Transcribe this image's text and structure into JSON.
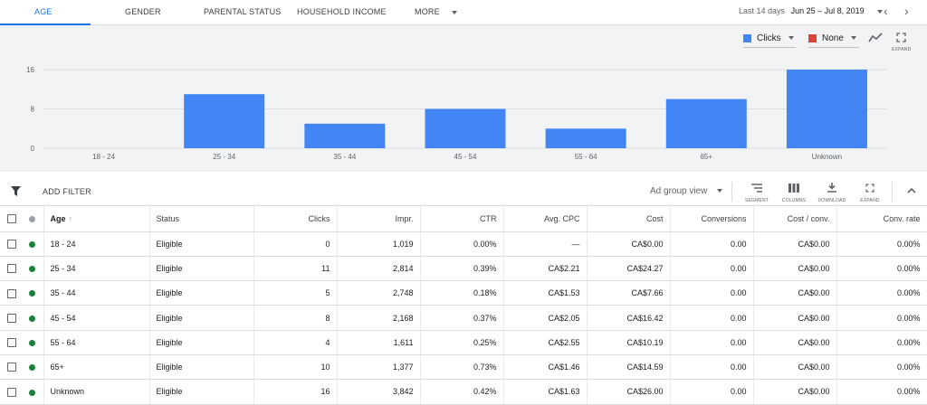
{
  "tabs": [
    {
      "label": "AGE",
      "active": true
    },
    {
      "label": "GENDER"
    },
    {
      "label": "PARENTAL STATUS"
    },
    {
      "label": "HOUSEHOLD INCOME"
    },
    {
      "label": "MORE"
    }
  ],
  "date_range": {
    "preset": "Last 14 days",
    "dates": "Jun 25 – Jul 8, 2019"
  },
  "chart_controls": {
    "metric1": {
      "label": "Clicks",
      "color": "#4285f4"
    },
    "metric2": {
      "label": "None",
      "color": "#db4437"
    },
    "expand_label": "EXPAND",
    "trend_icon": "trend-line-icon",
    "expand_icon": "fullscreen-icon"
  },
  "chart_data": {
    "type": "bar",
    "categories": [
      "18 - 24",
      "25 - 34",
      "35 - 44",
      "45 - 54",
      "55 - 64",
      "65+",
      "Unknown"
    ],
    "series": [
      {
        "name": "Clicks",
        "values": [
          0,
          11,
          5,
          8,
          4,
          10,
          16
        ],
        "color": "#4285f4"
      }
    ],
    "yticks": [
      "16",
      "8",
      "0"
    ],
    "ylim": [
      0,
      16
    ],
    "grid": true
  },
  "filterbar": {
    "add_filter": "ADD FILTER",
    "view_select": "Ad group view",
    "tools": [
      {
        "label": "SEGMENT",
        "icon": "segment-icon"
      },
      {
        "label": "COLUMNS",
        "icon": "columns-icon"
      },
      {
        "label": "DOWNLOAD",
        "icon": "download-icon"
      },
      {
        "label": "EXPAND",
        "icon": "fullscreen-icon"
      }
    ],
    "collapse_icon": "chevron-up-icon"
  },
  "table": {
    "columns": [
      "Age",
      "Status",
      "Clicks",
      "Impr.",
      "CTR",
      "Avg. CPC",
      "Cost",
      "Conversions",
      "Cost / conv.",
      "Conv. rate"
    ],
    "rows": [
      [
        "18 - 24",
        "Eligible",
        "0",
        "1,019",
        "0.00%",
        "—",
        "CA$0.00",
        "0.00",
        "CA$0.00",
        "0.00%"
      ],
      [
        "25 - 34",
        "Eligible",
        "11",
        "2,814",
        "0.39%",
        "CA$2.21",
        "CA$24.27",
        "0.00",
        "CA$0.00",
        "0.00%"
      ],
      [
        "35 - 44",
        "Eligible",
        "5",
        "2,748",
        "0.18%",
        "CA$1.53",
        "CA$7.66",
        "0.00",
        "CA$0.00",
        "0.00%"
      ],
      [
        "45 - 54",
        "Eligible",
        "8",
        "2,168",
        "0.37%",
        "CA$2.05",
        "CA$16.42",
        "0.00",
        "CA$0.00",
        "0.00%"
      ],
      [
        "55 - 64",
        "Eligible",
        "4",
        "1,611",
        "0.25%",
        "CA$2.55",
        "CA$10.19",
        "0.00",
        "CA$0.00",
        "0.00%"
      ],
      [
        "65+",
        "Eligible",
        "10",
        "1,377",
        "0.73%",
        "CA$1.46",
        "CA$14.59",
        "0.00",
        "CA$0.00",
        "0.00%"
      ],
      [
        "Unknown",
        "Eligible",
        "16",
        "3,842",
        "0.42%",
        "CA$1.63",
        "CA$26.00",
        "0.00",
        "CA$0.00",
        "0.00%"
      ]
    ]
  }
}
